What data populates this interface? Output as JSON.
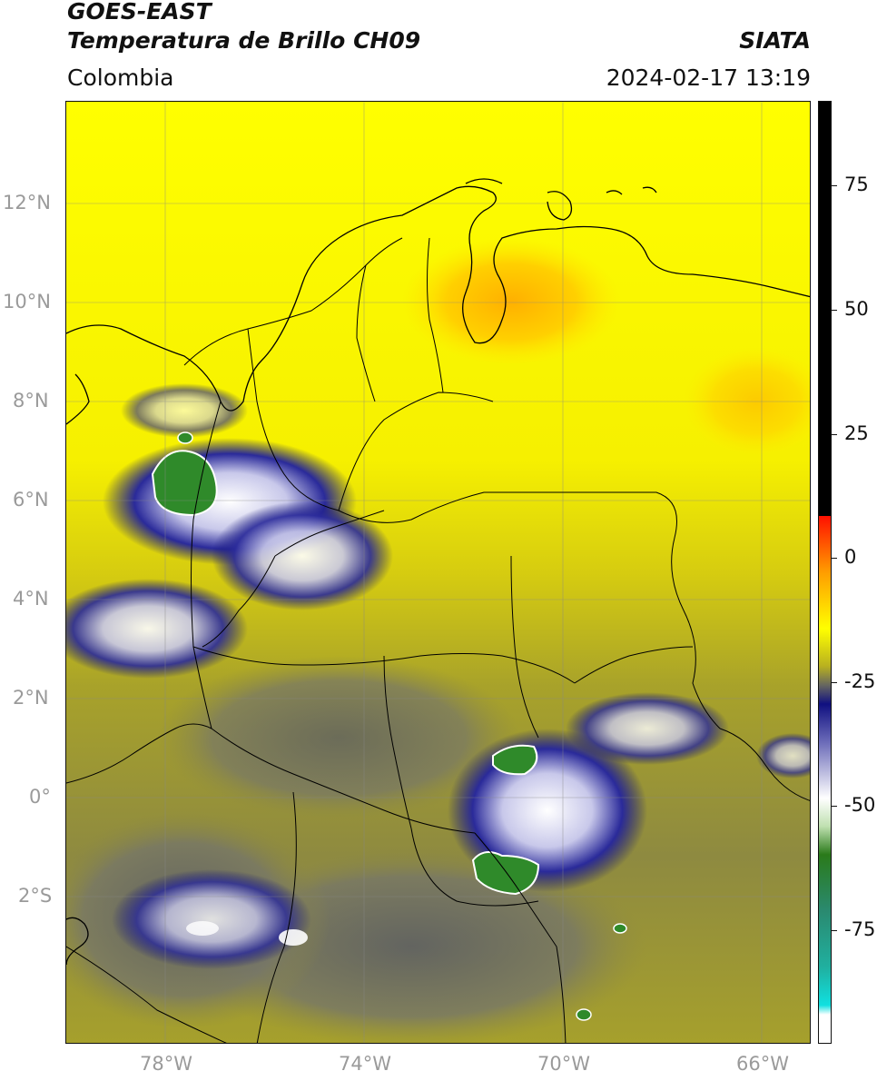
{
  "header": {
    "satellite": "GOES-EAST",
    "product": "Temperatura de Brillo CH09",
    "org": "SIATA",
    "region": "Colombia",
    "datetime": "2024-02-17 13:19"
  },
  "map": {
    "lat_ticks": [
      "12°N",
      "10°N",
      "8°N",
      "6°N",
      "4°N",
      "2°N",
      "0°",
      "2°S"
    ],
    "lon_ticks": [
      "78°W",
      "74°W",
      "70°W",
      "66°W"
    ],
    "grid": true,
    "extent": {
      "lon": [
        -80,
        -65
      ],
      "lat": [
        -5,
        14
      ]
    }
  },
  "colorbar": {
    "labels": [
      "75",
      "50",
      "25",
      "0",
      "-25",
      "-50",
      "-75"
    ],
    "range": [
      -97,
      90
    ],
    "colors": {
      "black": "#000000",
      "red": "#ff1000",
      "orange": "#ff9d00",
      "yellow": "#ffff00",
      "olive": "#b8b020",
      "gray": "#666660",
      "navy": "#101080",
      "white": "#ffffff",
      "green": "#2a7a1a",
      "teal": "#20b0a0",
      "cyan": "#10e0e0"
    }
  }
}
